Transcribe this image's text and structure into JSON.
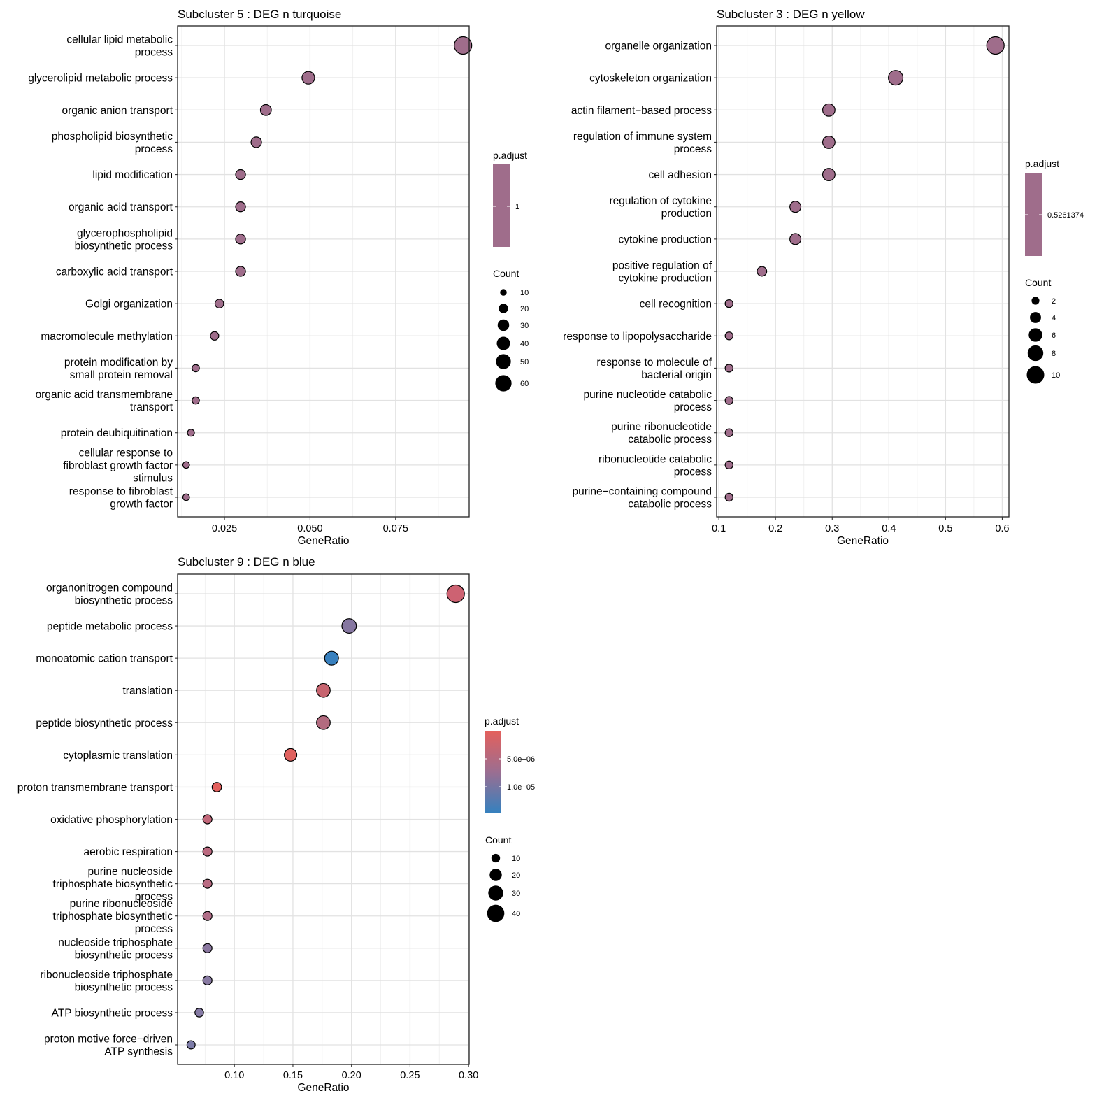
{
  "chart_data": [
    {
      "type": "scatter",
      "title": "Subcluster 5 : DEG n turquoise",
      "xlabel": "GeneRatio",
      "xlim": [
        0.0113,
        0.0965
      ],
      "xticks": [
        0.025,
        0.05,
        0.075
      ],
      "xtick_labels": [
        "0.025",
        "0.050",
        "0.075"
      ],
      "grid": true,
      "legend_position": "right",
      "categories": [
        "cellular lipid metabolic\nprocess",
        "glycerolipid metabolic process",
        "organic anion transport",
        "phospholipid biosynthetic\nprocess",
        "lipid modification",
        "organic acid transport",
        "glycerophospholipid\nbiosynthetic process",
        "carboxylic acid transport",
        "Golgi organization",
        "macromolecule methylation",
        "protein modification by\nsmall protein removal",
        "organic acid transmembrane\ntransport",
        "protein deubiquitination",
        "cellular response to\nfibroblast growth factor\nstimulus",
        "response to fibroblast\ngrowth factor"
      ],
      "x": [
        0.0947,
        0.0495,
        0.0371,
        0.0343,
        0.0297,
        0.0297,
        0.0297,
        0.0297,
        0.0235,
        0.0221,
        0.0166,
        0.0166,
        0.0152,
        0.0138,
        0.0138
      ],
      "count": [
        69,
        36,
        27,
        25,
        22,
        22,
        22,
        22,
        17,
        16,
        12,
        12,
        11,
        10,
        10
      ],
      "colors": [
        "#9f6d8b",
        "#9f6d8b",
        "#9f6d8b",
        "#9f6d8b",
        "#9f6d8b",
        "#9f6d8b",
        "#9f6d8b",
        "#9f6d8b",
        "#9f6d8b",
        "#9f6d8b",
        "#9f6d8b",
        "#9f6d8b",
        "#9f6d8b",
        "#9f6d8b",
        "#9f6d8b"
      ],
      "color_legend": {
        "title": "p.adjust",
        "labels": [
          "1"
        ],
        "gradient": [
          "#9f6d8b",
          "#9f6d8b"
        ]
      },
      "size_legend": {
        "title": "Count",
        "values": [
          10,
          20,
          30,
          40,
          50,
          60
        ],
        "labels": [
          "10",
          "20",
          "30",
          "40",
          "50",
          "60"
        ],
        "max": 69
      }
    },
    {
      "type": "scatter",
      "title": "Subcluster 3 : DEG n yellow",
      "xlabel": "GeneRatio",
      "xlim": [
        0.0961,
        0.6118
      ],
      "xticks": [
        0.1,
        0.2,
        0.3,
        0.4,
        0.5,
        0.6
      ],
      "xtick_labels": [
        "0.1",
        "0.2",
        "0.3",
        "0.4",
        "0.5",
        "0.6"
      ],
      "grid": true,
      "legend_position": "right",
      "categories": [
        "organelle organization",
        "cytoskeleton organization",
        "actin filament−based process",
        "regulation of immune system\nprocess",
        "cell adhesion",
        "regulation of cytokine\nproduction",
        "cytokine production",
        "positive regulation of\ncytokine production",
        "cell recognition",
        "response to lipopolysaccharide",
        "response to molecule of\nbacterial origin",
        "purine nucleotide catabolic\nprocess",
        "purine ribonucleotide\ncatabolic process",
        "ribonucleotide catabolic\nprocess",
        "purine−containing compound\ncatabolic process"
      ],
      "x": [
        0.588,
        0.412,
        0.294,
        0.294,
        0.294,
        0.235,
        0.235,
        0.176,
        0.118,
        0.118,
        0.118,
        0.118,
        0.118,
        0.118,
        0.118
      ],
      "count": [
        10,
        7,
        5,
        5,
        5,
        4,
        4,
        3,
        2,
        2,
        2,
        2,
        2,
        2,
        2
      ],
      "colors": [
        "#9f6d8b",
        "#9f6d8b",
        "#9f6d8b",
        "#9f6d8b",
        "#9f6d8b",
        "#9f6d8b",
        "#9f6d8b",
        "#9f6d8b",
        "#9f6d8b",
        "#9f6d8b",
        "#9f6d8b",
        "#9f6d8b",
        "#9f6d8b",
        "#9f6d8b",
        "#9f6d8b"
      ],
      "color_legend": {
        "title": "p.adjust",
        "labels": [
          "0.5261374"
        ],
        "gradient": [
          "#9f6d8b",
          "#9f6d8b"
        ]
      },
      "size_legend": {
        "title": "Count",
        "values": [
          2,
          4,
          6,
          8,
          10
        ],
        "labels": [
          "2",
          "4",
          "6",
          "8",
          "10"
        ],
        "max": 10
      }
    },
    {
      "type": "scatter",
      "title": "Subcluster 9 : DEG n blue",
      "xlabel": "GeneRatio",
      "xlim": [
        0.0515,
        0.3005
      ],
      "xticks": [
        0.1,
        0.15,
        0.2,
        0.25,
        0.3
      ],
      "xtick_labels": [
        "0.10",
        "0.15",
        "0.20",
        "0.25",
        "0.30"
      ],
      "grid": true,
      "legend_position": "right",
      "categories": [
        "organonitrogen compound\nbiosynthetic process",
        "peptide metabolic process",
        "monoatomic cation transport",
        "translation",
        "peptide biosynthetic process",
        "cytoplasmic translation",
        "proton transmembrane transport",
        "oxidative phosphorylation",
        "aerobic respiration",
        "purine nucleoside\ntriphosphate biosynthetic\nprocess",
        "purine ribonucleoside\ntriphosphate biosynthetic\nprocess",
        "nucleoside triphosphate\nbiosynthetic process",
        "ribonucleoside triphosphate\nbiosynthetic process",
        "ATP biosynthetic process",
        "proton motive force−driven\nATP synthesis"
      ],
      "x": [
        0.289,
        0.198,
        0.183,
        0.176,
        0.176,
        0.148,
        0.085,
        0.077,
        0.077,
        0.077,
        0.077,
        0.077,
        0.077,
        0.07,
        0.063
      ],
      "count": [
        41,
        28,
        26,
        25,
        25,
        21,
        12,
        11,
        11,
        11,
        11,
        11,
        11,
        10,
        9
      ],
      "colors": [
        "#cd6272",
        "#8677a1",
        "#3880be",
        "#c7646f",
        "#b26b7f",
        "#e0615e",
        "#e3605d",
        "#c2677a",
        "#bb6a80",
        "#b96b82",
        "#b06d87",
        "#8a779f",
        "#887aa2",
        "#857aa4",
        "#7d7ca8"
      ],
      "color_legend": {
        "title": "p.adjust",
        "labels": [
          "5.0e−06",
          "1.0e−05"
        ],
        "gradient": [
          "#e4605c",
          "#9b6e91",
          "#3481bf"
        ]
      },
      "size_legend": {
        "title": "Count",
        "values": [
          10,
          20,
          30,
          40
        ],
        "labels": [
          "10",
          "20",
          "30",
          "40"
        ],
        "max": 41
      }
    }
  ]
}
